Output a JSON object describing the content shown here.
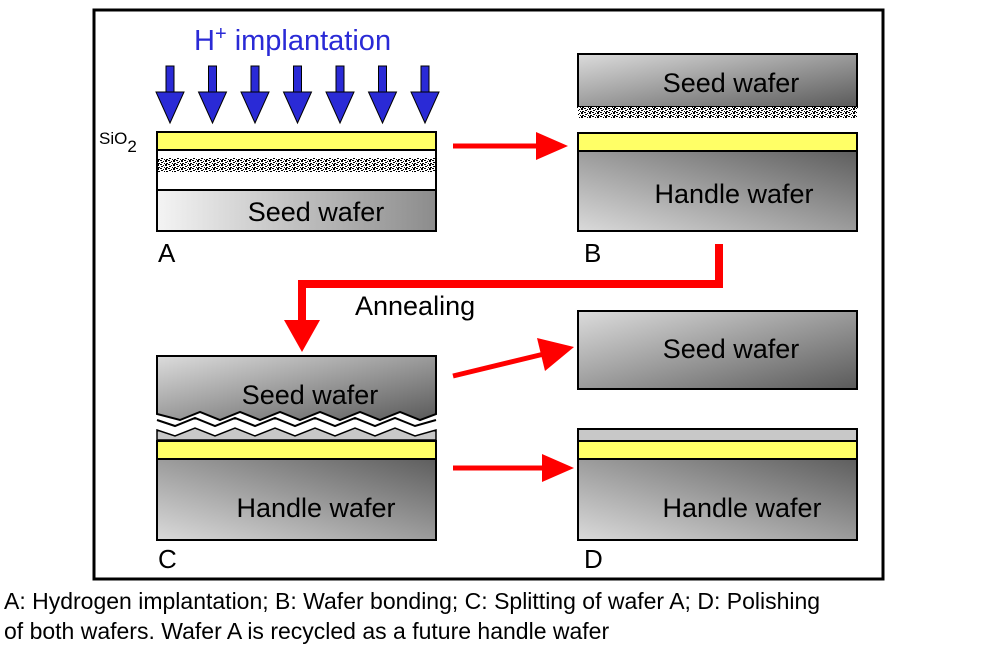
{
  "diagram": {
    "implant_label": "H",
    "implant_superscript": "+",
    "implant_label_rest": " implantation",
    "oxide_label": "SiO",
    "oxide_subscript": "2",
    "seed_wafer": "Seed wafer",
    "handle_wafer": "Handle wafer",
    "annealing": "Annealing",
    "step_a": "A",
    "step_b": "B",
    "step_c": "C",
    "step_d": "D"
  },
  "caption": {
    "line1": "A: Hydrogen implantation; B: Wafer bonding; C: Splitting of wafer A; D: Polishing",
    "line2": "of both wafers. Wafer A is recycled as a future handle wafer"
  },
  "colors": {
    "arrow_red": "#ff0000",
    "implant_blue": "#2a2ad6",
    "oxide_yellow": "#ffff66",
    "frame": "#000000"
  }
}
